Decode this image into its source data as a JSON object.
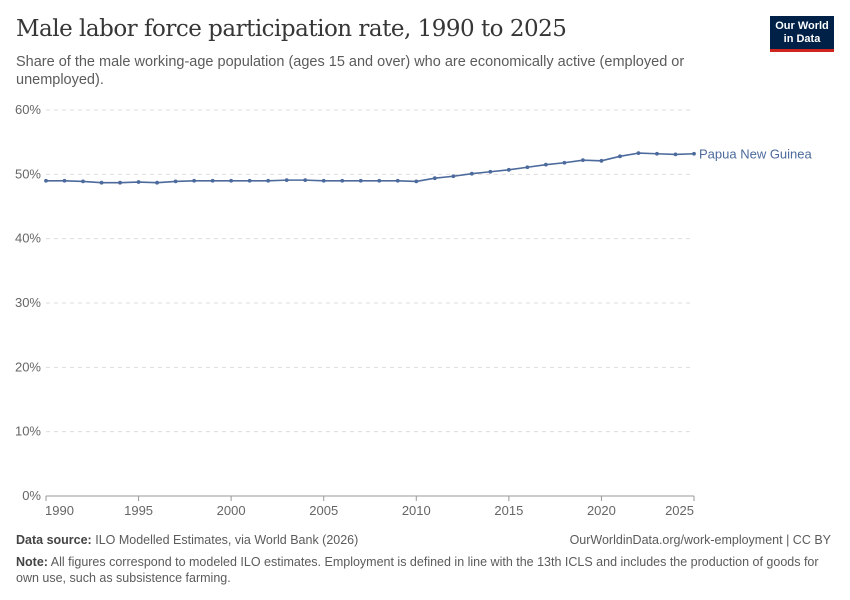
{
  "title": "Male labor force participation rate, 1990 to 2025",
  "subtitle": "Share of the male working-age population (ages 15 and over) who are economically active (employed or unemployed).",
  "logo": {
    "line1": "Our World",
    "line2": "in Data"
  },
  "chart_data": {
    "type": "line",
    "xlim": [
      1990,
      2025
    ],
    "ylim": [
      0,
      60
    ],
    "y_ticks": [
      "0%",
      "10%",
      "20%",
      "30%",
      "40%",
      "50%",
      "60%"
    ],
    "y_tick_values": [
      0,
      10,
      20,
      30,
      40,
      50,
      60
    ],
    "x_ticks": [
      "1990",
      "1995",
      "2000",
      "2005",
      "2010",
      "2015",
      "2020",
      "2025"
    ],
    "x_tick_values": [
      1990,
      1995,
      2000,
      2005,
      2010,
      2015,
      2020,
      2025
    ],
    "grid": "horizontal dashed",
    "series": [
      {
        "name": "Papua New Guinea",
        "color": "#4c6a9c",
        "x": [
          1990,
          1991,
          1992,
          1993,
          1994,
          1995,
          1996,
          1997,
          1998,
          1999,
          2000,
          2001,
          2002,
          2003,
          2004,
          2005,
          2006,
          2007,
          2008,
          2009,
          2010,
          2011,
          2012,
          2013,
          2014,
          2015,
          2016,
          2017,
          2018,
          2019,
          2020,
          2021,
          2022,
          2023,
          2024,
          2025
        ],
        "y": [
          49.0,
          49.0,
          48.9,
          48.7,
          48.7,
          48.8,
          48.7,
          48.9,
          49.0,
          49.0,
          49.0,
          49.0,
          49.0,
          49.1,
          49.1,
          49.0,
          49.0,
          49.0,
          49.0,
          49.0,
          48.9,
          49.4,
          49.7,
          50.1,
          50.4,
          50.7,
          51.1,
          51.5,
          51.8,
          52.2,
          52.1,
          52.8,
          53.3,
          53.2,
          53.1,
          53.2
        ]
      }
    ]
  },
  "footer": {
    "source_label": "Data source:",
    "source": "ILO Modelled Estimates, via World Bank (2026)",
    "url": "OurWorldinData.org/work-employment | CC BY",
    "note_label": "Note:",
    "note": "All figures correspond to modeled ILO estimates. Employment is defined in line with the 13th ICLS and includes the production of goods for own use, such as subsistence farming."
  }
}
